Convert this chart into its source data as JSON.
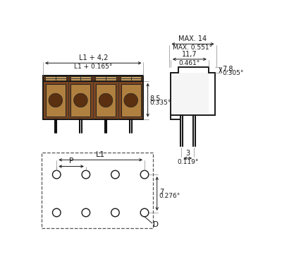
{
  "bg_color": "#ffffff",
  "line_color": "#1a1a1a",
  "dim_color": "#1a1a1a",
  "dashed_color": "#444444",
  "front_view": {
    "label_l1_4": "L1 + 4,2",
    "label_l1_0165": "L1 + 0.165°",
    "label_85": "8,5",
    "label_0335": "0.335°",
    "num_poles": 4
  },
  "side_view": {
    "label_max14": "MAX. 14",
    "label_max0551": "MAX. 0.551°",
    "label_117": "11,7",
    "label_0461": "0.461°",
    "label_78": "7,8",
    "label_0305": "0.305°",
    "label_3": "3",
    "label_0119": "0.119°"
  },
  "top_view": {
    "label_l1": "L1",
    "label_p": "P",
    "label_7": "7",
    "label_0276": "0.276°",
    "label_d": "D",
    "num_poles": 4
  }
}
